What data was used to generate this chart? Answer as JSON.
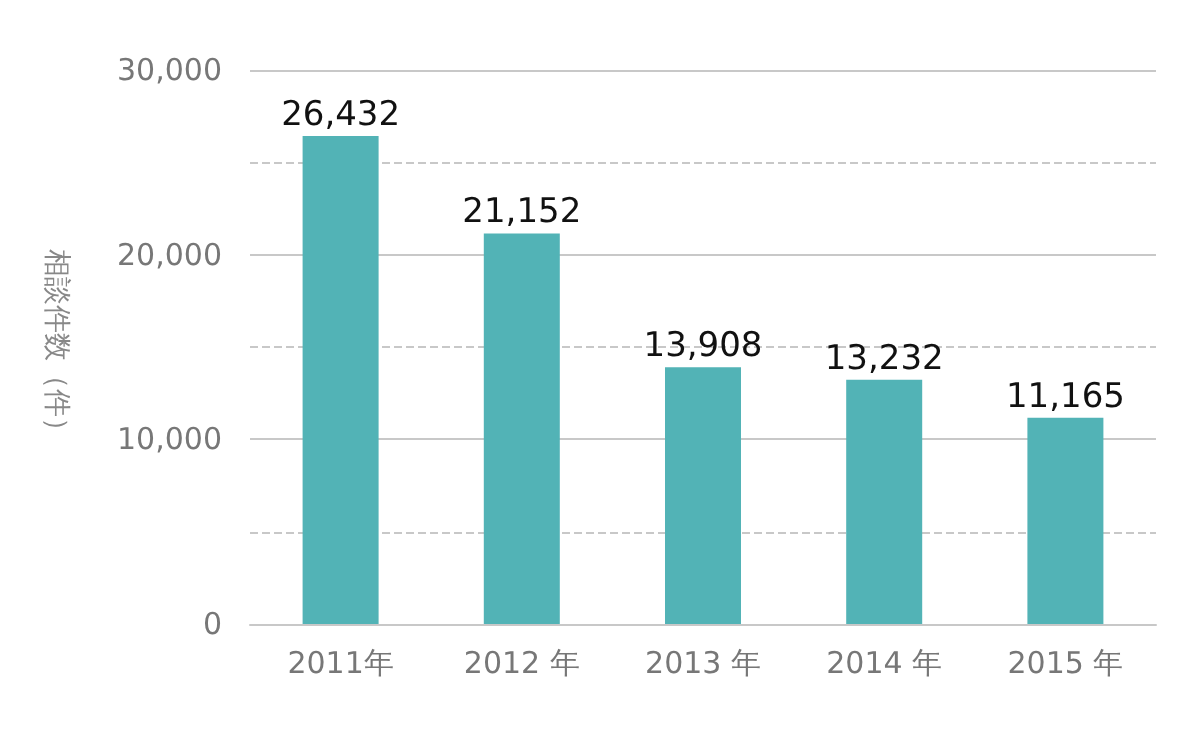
{
  "chart_data": {
    "type": "bar",
    "ylabel": "相談件数（件）",
    "categories": [
      "2011年",
      "2012 年",
      "2013 年",
      "2014 年",
      "2015 年"
    ],
    "values": [
      26432,
      21152,
      13908,
      13232,
      11165
    ],
    "color": "#52b3b6",
    "value_labels": [
      "26,432",
      "21,152",
      "13,908",
      "13,232",
      "11,165"
    ],
    "ylim": [
      0,
      30000
    ],
    "yticks": [
      0,
      {
        "value": 5000,
        "label": null
      },
      {
        "value": 10000,
        "label": "10,000"
      },
      {
        "value": 15000,
        "label": null
      },
      {
        "value": 20000,
        "label": "20,000"
      },
      {
        "value": 25000,
        "label": null
      },
      {
        "value": 30000,
        "label": "30,000"
      }
    ],
    "grid": true
  }
}
